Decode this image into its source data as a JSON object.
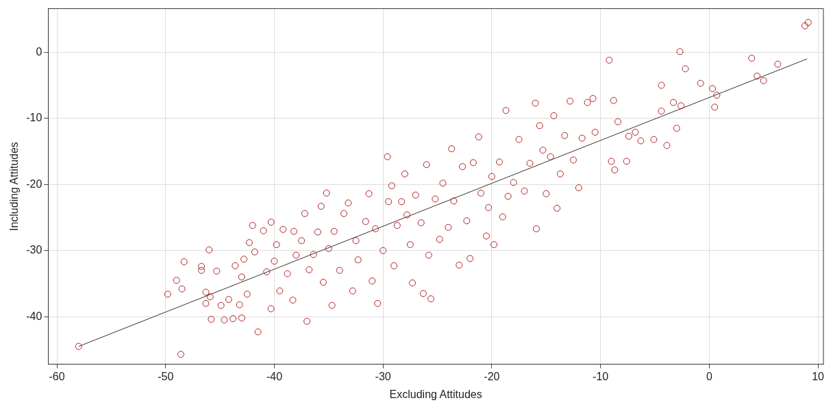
{
  "chart_data": {
    "type": "scatter",
    "xlabel": "Excluding Attitudes",
    "ylabel": "Including Attitudes",
    "xlim": [
      -60.8,
      10.5
    ],
    "ylim": [
      -47.2,
      6.6
    ],
    "xticks": [
      -60,
      -50,
      -40,
      -30,
      -20,
      -10,
      0,
      10
    ],
    "yticks": [
      -40,
      -30,
      -20,
      -10,
      0
    ],
    "grid": true,
    "legend": false,
    "series": [
      {
        "type": "scatter",
        "marker": "circle",
        "color": "#b22222",
        "x": [
          -58,
          -48.6,
          -49.8,
          -49,
          -48.5,
          -48.3,
          -46.7,
          -46.7,
          -46.3,
          -46.3,
          -45.9,
          -45.8,
          -46,
          -45.3,
          -44.9,
          -44.6,
          -44.2,
          -43.8,
          -43.6,
          -43.2,
          -43,
          -43,
          -42.8,
          -42.5,
          -42.3,
          -42,
          -41.8,
          -41.5,
          -41,
          -40.7,
          -40.3,
          -40.3,
          -40,
          -39.8,
          -39.5,
          -39.2,
          -38.8,
          -38.2,
          -38.3,
          -38,
          -37.5,
          -37.2,
          -37,
          -36.8,
          -36.4,
          -36,
          -35.7,
          -35.5,
          -35.2,
          -35,
          -34.7,
          -34.5,
          -34,
          -33.6,
          -33.2,
          -32.8,
          -32.5,
          -32.3,
          -31.6,
          -31.3,
          -31,
          -30.7,
          -30.5,
          -30,
          -29.6,
          -29.5,
          -29.2,
          -29,
          -28.7,
          -28.3,
          -28,
          -27.8,
          -27.5,
          -27.3,
          -27,
          -26.5,
          -26.3,
          -26,
          -25.8,
          -25.6,
          -25.2,
          -24.8,
          -24.5,
          -24,
          -23.7,
          -23.5,
          -23,
          -22.7,
          -22.3,
          -22,
          -21.7,
          -21.2,
          -21,
          -20.5,
          -20.3,
          -20,
          -19.8,
          -19.3,
          -19,
          -18.7,
          -18.5,
          -18,
          -17.5,
          -17,
          -16.5,
          -16,
          -15.9,
          -15.6,
          -15.3,
          -15,
          -14.6,
          -14.3,
          -14,
          -13.7,
          -13.3,
          -12.8,
          -12.5,
          -12,
          -11.7,
          -11.2,
          -10.7,
          -10.5,
          -9.2,
          -9,
          -8.8,
          -8.7,
          -8.4,
          -7.6,
          -7.4,
          -6.8,
          -6.3,
          -5.1,
          -4.4,
          -4.4,
          -3.9,
          -3.3,
          -3,
          -2.7,
          -2.6,
          -2.2,
          -0.8,
          0.3,
          0.5,
          0.7,
          3.9,
          4.4,
          5,
          6.3,
          8.8,
          9.1
        ],
        "values": [
          -44.5,
          -45.7,
          -36.6,
          -34.5,
          -35.8,
          -31.7,
          -33,
          -32.4,
          -38,
          -36.3,
          -37,
          -40.4,
          -29.9,
          -33.1,
          -38.3,
          -40.5,
          -37.4,
          -40.3,
          -32.3,
          -38.2,
          -40.2,
          -34,
          -31.3,
          -36.6,
          -28.8,
          -26.2,
          -30.2,
          -42.3,
          -27,
          -33.2,
          -25.7,
          -38.8,
          -31.6,
          -29.1,
          -36.1,
          -26.8,
          -33.5,
          -27.1,
          -37.5,
          -30.7,
          -28.5,
          -24.4,
          -40.7,
          -32.9,
          -30.6,
          -27.2,
          -23.3,
          -34.8,
          -21.3,
          -29.7,
          -38.3,
          -27.1,
          -33,
          -24.4,
          -22.8,
          -36.1,
          -28.5,
          -31.4,
          -25.6,
          -21.4,
          -34.6,
          -26.7,
          -38,
          -30,
          -15.8,
          -22.6,
          -20.2,
          -32.3,
          -26.2,
          -22.6,
          -18.4,
          -24.6,
          -29.1,
          -34.9,
          -21.6,
          -25.8,
          -36.5,
          -17,
          -30.7,
          -37.3,
          -22.2,
          -28.3,
          -19.8,
          -26.5,
          -14.6,
          -22.5,
          -32.2,
          -17.3,
          -25.5,
          -31.2,
          -16.7,
          -12.8,
          -21.3,
          -27.8,
          -23.5,
          -18.8,
          -29.1,
          -16.6,
          -24.9,
          -8.8,
          -21.8,
          -19.7,
          -13.2,
          -21,
          -16.8,
          -7.7,
          -26.7,
          -11.1,
          -14.8,
          -21.4,
          -15.8,
          -9.6,
          -23.6,
          -18.4,
          -12.6,
          -7.4,
          -16.3,
          -20.5,
          -13,
          -7.6,
          -7,
          -12.1,
          -1.2,
          -16.5,
          -7.3,
          -17.8,
          -10.5,
          -16.5,
          -12.7,
          -12.1,
          -13.4,
          -13.2,
          -5,
          -8.9,
          -14.1,
          -7.6,
          -11.5,
          0.1,
          -8.1,
          -2.5,
          -4.7,
          -5.5,
          -8.3,
          -6.5,
          -0.9,
          -3.6,
          -4.3,
          -1.8,
          4,
          4.5
        ]
      },
      {
        "type": "line",
        "marker": "none",
        "line_style": "solid",
        "color": "#333333",
        "x": [
          -58,
          9
        ],
        "values": [
          -44.5,
          -1
        ]
      }
    ]
  }
}
